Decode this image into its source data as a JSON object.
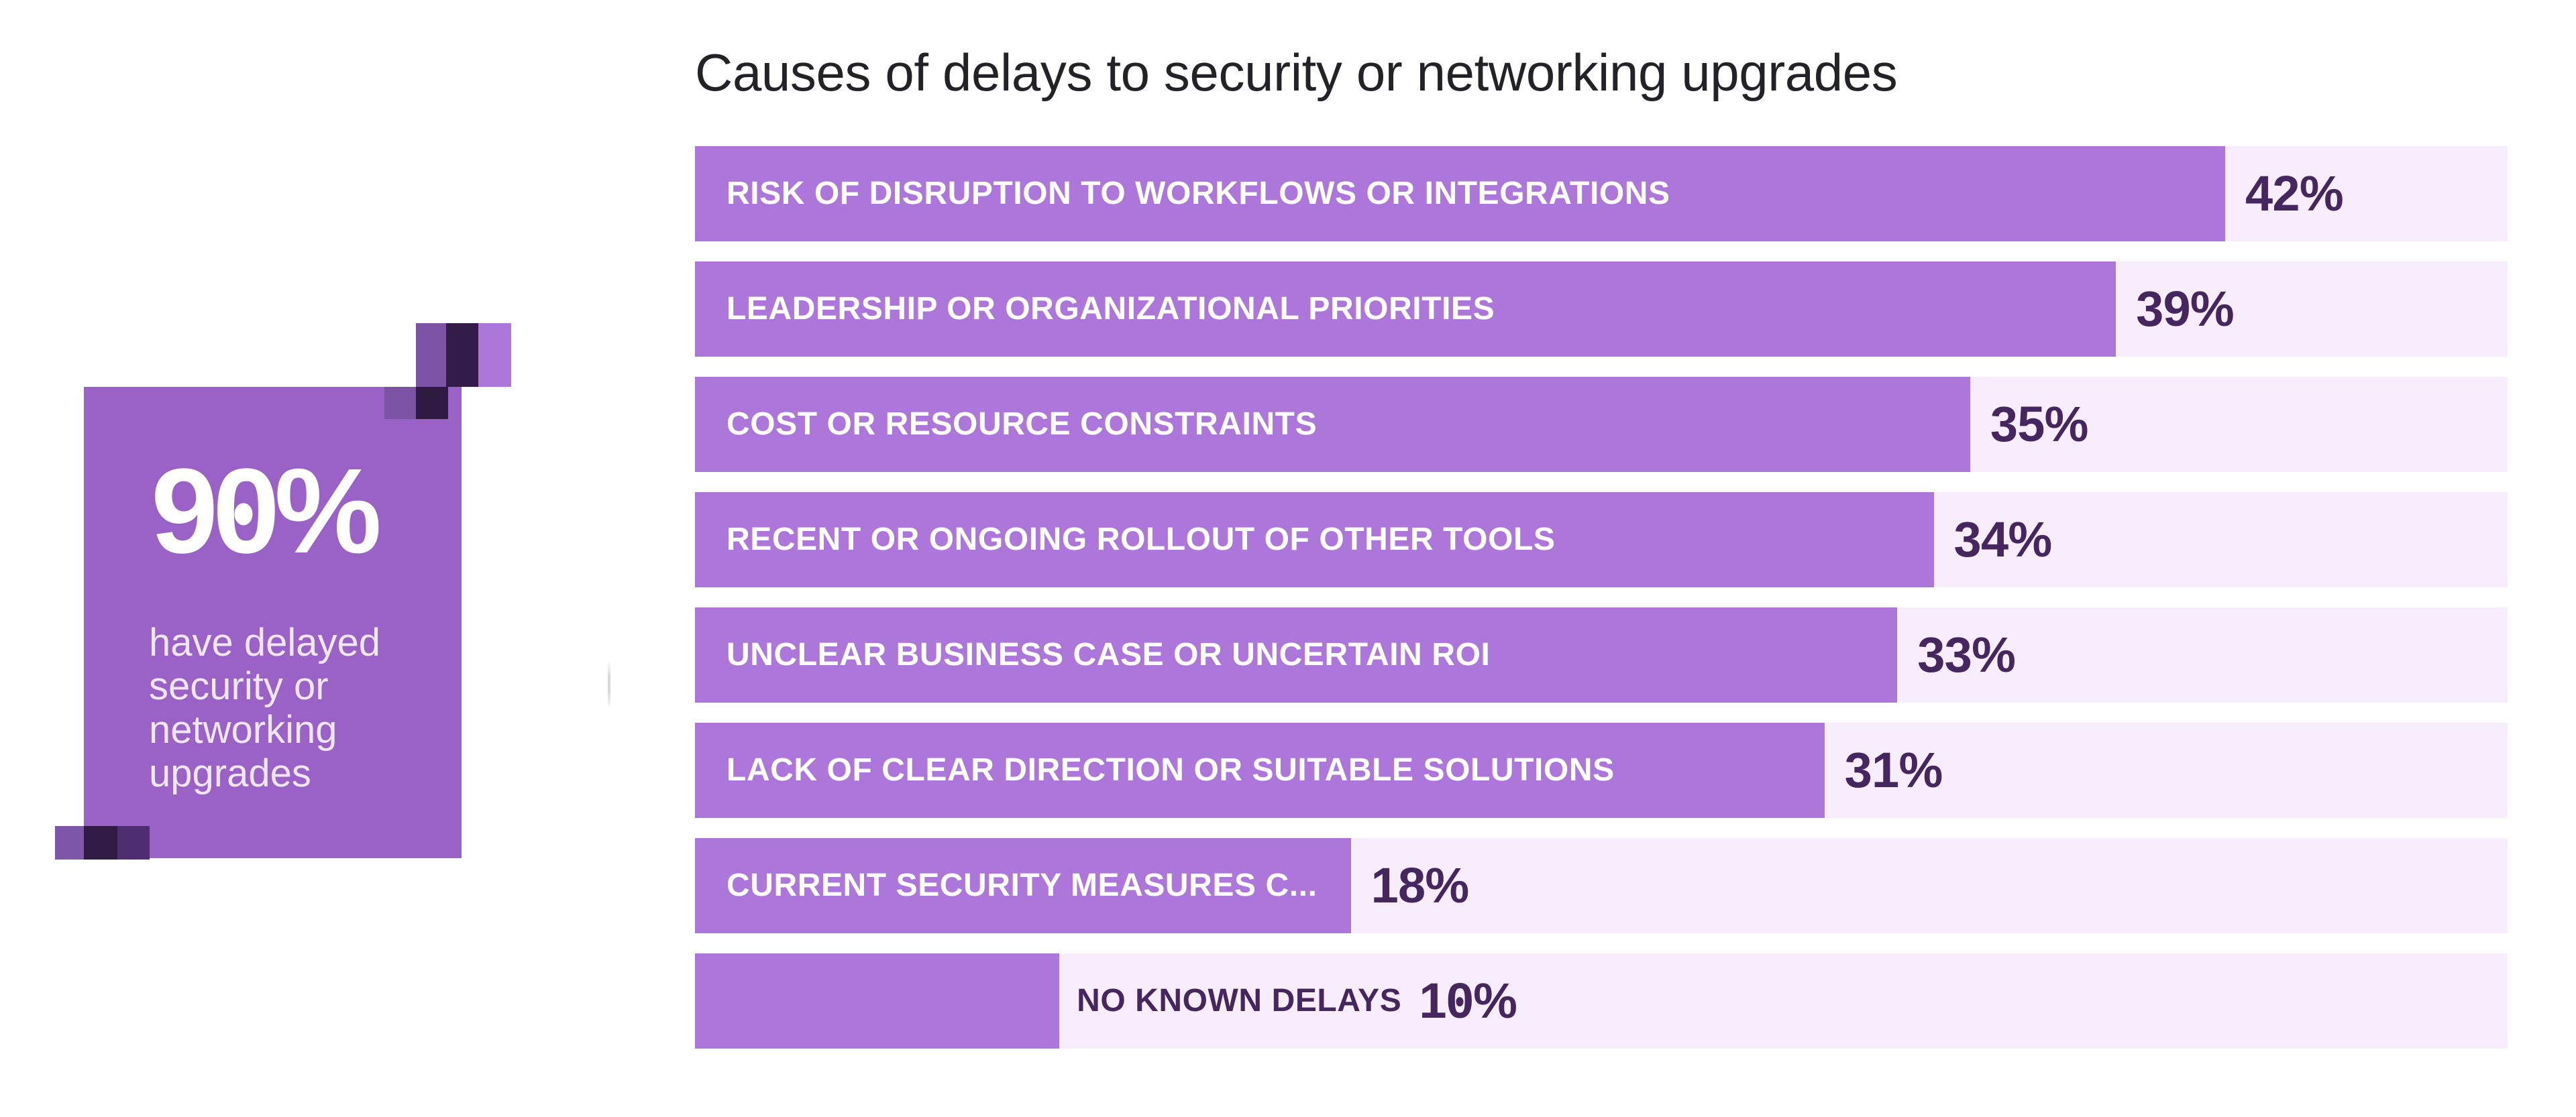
{
  "title": "Causes of delays to security or networking upgrades",
  "stat_card": {
    "value": "90%",
    "caption": "have delayed security or networking upgrades"
  },
  "chart_data": {
    "type": "bar",
    "orientation": "horizontal",
    "title": "Causes of delays to security or networking upgrades",
    "unit": "%",
    "xlim": [
      0,
      50
    ],
    "bar_width_percent_per_point": 2.01,
    "grid": false,
    "legend": false,
    "categories": [
      "RISK OF DISRUPTION TO WORKFLOWS OR INTEGRATIONS",
      "LEADERSHIP OR ORGANIZATIONAL PRIORITIES",
      "COST OR RESOURCE CONSTRAINTS",
      "RECENT OR ONGOING ROLLOUT OF OTHER TOOLS",
      "UNCLEAR BUSINESS CASE OR UNCERTAIN ROI",
      "LACK OF CLEAR DIRECTION OR SUITABLE SOLUTIONS",
      "CURRENT SECURITY MEASURES C...",
      "NO KNOWN DELAYS"
    ],
    "values": [
      42,
      39,
      35,
      34,
      33,
      31,
      18,
      10
    ],
    "bars": [
      {
        "label": "RISK OF DISRUPTION TO WORKFLOWS OR INTEGRATIONS",
        "value": 42,
        "display": "42%",
        "label_position": "inside"
      },
      {
        "label": "LEADERSHIP OR ORGANIZATIONAL PRIORITIES",
        "value": 39,
        "display": "39%",
        "label_position": "inside"
      },
      {
        "label": "COST OR RESOURCE CONSTRAINTS",
        "value": 35,
        "display": "35%",
        "label_position": "inside"
      },
      {
        "label": "RECENT OR ONGOING ROLLOUT OF OTHER TOOLS",
        "value": 34,
        "display": "34%",
        "label_position": "inside"
      },
      {
        "label": "UNCLEAR BUSINESS CASE OR UNCERTAIN ROI",
        "value": 33,
        "display": "33%",
        "label_position": "inside"
      },
      {
        "label": "LACK OF CLEAR DIRECTION OR SUITABLE SOLUTIONS",
        "value": 31,
        "display": "31%",
        "label_position": "inside"
      },
      {
        "label": "CURRENT SECURITY MEASURES C...",
        "value": 18,
        "display": "18%",
        "label_position": "inside"
      },
      {
        "label": "NO KNOWN DELAYS",
        "value": 10,
        "display": "10%",
        "label_position": "outside"
      }
    ]
  },
  "colors": {
    "background": "#FFFFFF",
    "bar_fill": "#AC76DA",
    "bar_track": "#F8EDFC",
    "bar_label_text": "#FFFFFF",
    "value_text": "#46265F",
    "title_text": "#232327",
    "card_background": "#9A61C6",
    "card_value_text": "#FFFFFF",
    "card_caption_text": "#EFE7F8",
    "pixel_violet": "#7B53A4",
    "pixel_dark": "#331C49",
    "pixel_light": "#AC76DB",
    "pixel_overlay": "#4F2F72"
  }
}
